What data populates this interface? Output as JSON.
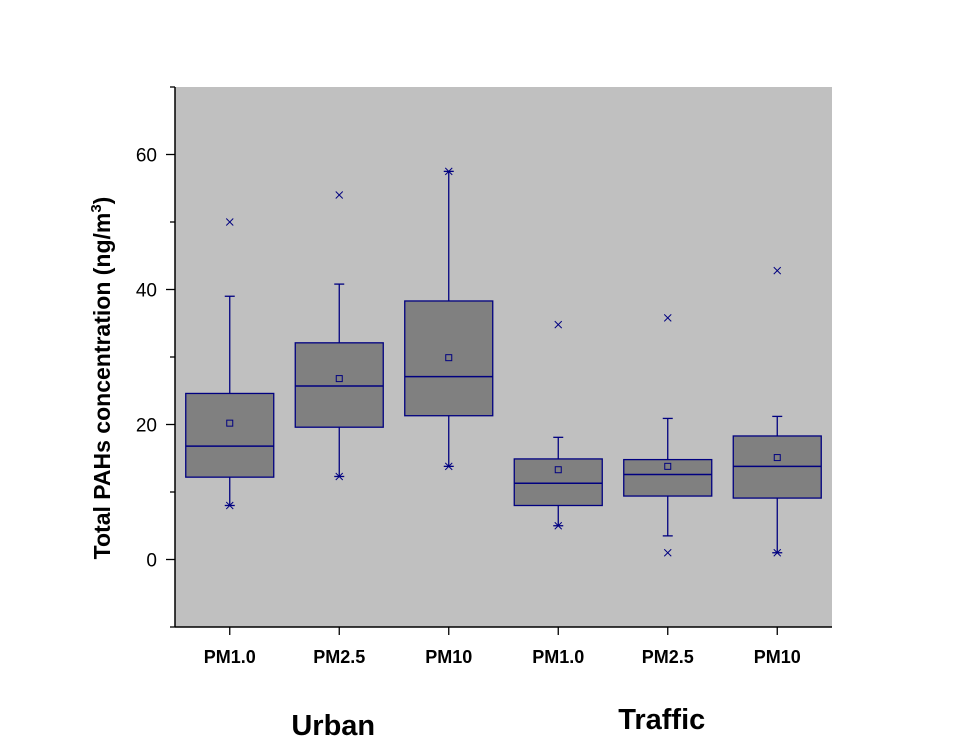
{
  "chart_data": {
    "type": "box",
    "title": "",
    "xlabel": "",
    "ylabel": "Total PAHs concentration (ng/m",
    "ylabel_sup": "3",
    "ylabel_close": ")",
    "ylim": [
      -10,
      70
    ],
    "yticks": [
      0,
      20,
      40,
      60
    ],
    "grid": false,
    "legend": "none",
    "plot_background": "#c0c0c0",
    "box_fill": "#808080",
    "stroke_color": "#000080",
    "groups": [
      {
        "label": "Urban",
        "categories": [
          "PM1.0",
          "PM2.5",
          "PM10"
        ]
      },
      {
        "label": "Traffic",
        "categories": [
          "PM1.0",
          "PM2.5",
          "PM10"
        ]
      }
    ],
    "boxes": [
      {
        "group": "Urban",
        "category": "PM1.0",
        "whisker_low": 8,
        "q1": 12.2,
        "median": 16.8,
        "q3": 24.6,
        "whisker_high": 39,
        "mean": 20.2,
        "extremes": [
          8,
          50
        ]
      },
      {
        "group": "Urban",
        "category": "PM2.5",
        "whisker_low": 12.3,
        "q1": 19.6,
        "median": 25.7,
        "q3": 32.1,
        "whisker_high": 40.8,
        "mean": 26.8,
        "extremes": [
          12.3,
          54
        ]
      },
      {
        "group": "Urban",
        "category": "PM10",
        "whisker_low": 13.8,
        "q1": 21.3,
        "median": 27.1,
        "q3": 38.3,
        "whisker_high": 57.5,
        "mean": 29.9,
        "extremes": [
          13.8,
          57.5
        ]
      },
      {
        "group": "Traffic",
        "category": "PM1.0",
        "whisker_low": 5,
        "q1": 8,
        "median": 11.3,
        "q3": 14.9,
        "whisker_high": 18.1,
        "mean": 13.3,
        "extremes": [
          5,
          34.8
        ]
      },
      {
        "group": "Traffic",
        "category": "PM2.5",
        "whisker_low": 3.5,
        "q1": 9.4,
        "median": 12.6,
        "q3": 14.8,
        "whisker_high": 20.9,
        "mean": 13.8,
        "extremes": [
          1,
          35.8
        ]
      },
      {
        "group": "Traffic",
        "category": "PM10",
        "whisker_low": 1,
        "q1": 9.1,
        "median": 13.8,
        "q3": 18.3,
        "whisker_high": 21.2,
        "mean": 15.1,
        "extremes": [
          1,
          42.8
        ]
      }
    ]
  }
}
